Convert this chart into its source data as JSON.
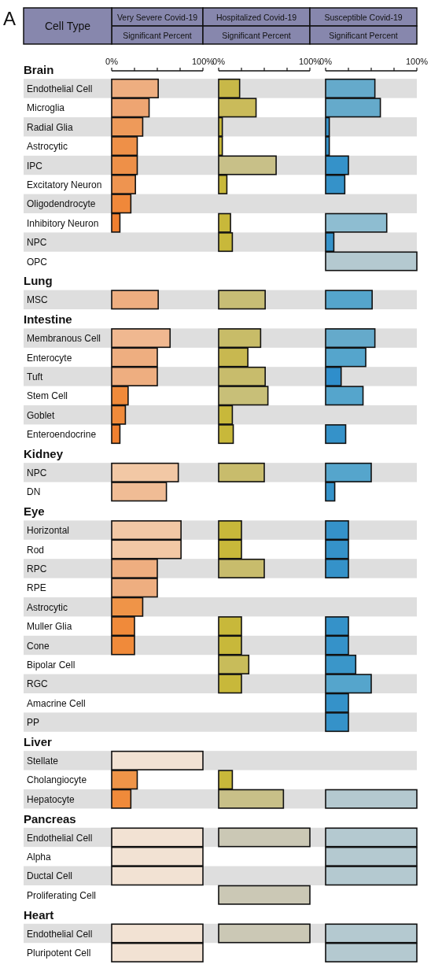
{
  "chart_data": [
    {
      "type": "bar",
      "orientation": "horizontal",
      "title": "Very Severe Covid-19",
      "subtitle": "Significant Percent",
      "ylabel": "Cell Type",
      "annotations": [
        "A"
      ],
      "categories": [
        "Brain",
        "Endothelial Cell",
        "Microglia",
        "Radial Glia",
        "Astrocytic",
        "IPC",
        "Excitatory Neuron",
        "Oligodendrocyte",
        "Inhibitory Neuron",
        "NPC",
        "OPC",
        "Lung",
        "MSC",
        "Intestine",
        "Membranous Cell",
        "Enterocyte",
        "Tuft",
        "Stem Cell",
        "Goblet",
        "Enteroendocrine",
        "Kidney",
        "NPC",
        "DN",
        "Eye",
        "Horizontal",
        "Rod",
        "RPC",
        "RPE",
        "Astrocytic",
        "Muller Glia",
        "Cone",
        "Bipolar Cell",
        "RGC",
        "Amacrine Cell",
        "PP",
        "Liver",
        "Stellate",
        "Cholangiocyte",
        "Hepatocyte",
        "Pancreas",
        "Endothelial Cell",
        "Alpha",
        "Ductal Cell",
        "Proliferating Cell",
        "Heart",
        "Endothelial Cell",
        "Pluripotent Cell"
      ],
      "values": [
        null,
        51,
        41,
        34,
        28,
        28,
        26,
        21,
        9,
        null,
        null,
        null,
        51,
        null,
        64,
        50,
        50,
        18,
        15,
        9,
        null,
        73,
        60,
        null,
        76,
        76,
        50,
        50,
        34,
        25,
        25,
        null,
        null,
        null,
        null,
        null,
        100,
        28,
        21,
        null,
        100,
        100,
        100,
        null,
        null,
        100,
        100
      ],
      "colors": [
        null,
        "#eeae80",
        "#eea572",
        "#ee9a5a",
        "#ee9048",
        "#ee9048",
        "#ee9450",
        "#f0883a",
        "#ef7f30",
        null,
        null,
        null,
        "#eeae80",
        null,
        "#f0b890",
        "#eeae80",
        "#eeae80",
        "#f08a3a",
        "#f08a3a",
        "#f08030",
        null,
        "#f2c8a5",
        "#f0bc95",
        null,
        "#f2c8a5",
        "#f2c8a5",
        "#eeae80",
        "#eeae80",
        "#ef9448",
        "#f08a3a",
        "#f08a3a",
        null,
        null,
        null,
        null,
        null,
        "#f2e2d3",
        "#ef9448",
        "#f08a3a",
        null,
        "#f2e2d3",
        "#f2e2d3",
        "#f2e2d3",
        null,
        null,
        "#f2e2d3",
        "#f2e2d3"
      ],
      "xlim": [
        0,
        100
      ],
      "xticks": [
        {
          "value": 0,
          "label": "0%"
        },
        {
          "value": 25,
          "label": null
        },
        {
          "value": 50,
          "label": null
        },
        {
          "value": 75,
          "label": null
        },
        {
          "value": 100,
          "label": "100%"
        }
      ]
    },
    {
      "type": "bar",
      "orientation": "horizontal",
      "title": "Hospitalized Covid-19",
      "subtitle": "Significant Percent",
      "tick_labels": "x",
      "values": [
        null,
        23,
        41,
        4,
        4,
        63,
        9,
        null,
        13,
        15,
        null,
        null,
        51,
        null,
        46,
        32,
        51,
        54,
        15,
        16,
        null,
        50,
        null,
        null,
        25,
        25,
        50,
        null,
        null,
        25,
        25,
        33,
        25,
        null,
        null,
        null,
        null,
        15,
        71,
        null,
        100,
        null,
        null,
        100,
        null,
        100,
        null
      ],
      "colors": [
        null,
        "#c8b848",
        "#cabb5a",
        "#c8b83a",
        "#c8b83a",
        "#c8c088",
        "#c8b83a",
        null,
        "#c8b83a",
        "#c8b83a",
        null,
        null,
        "#c7bd75",
        null,
        "#c8bc68",
        "#c8b850",
        "#c8bc6c",
        "#c8bf78",
        "#c8b83a",
        "#c8b83a",
        null,
        "#c8bc6c",
        null,
        null,
        "#c8b83a",
        "#c8b83a",
        "#c8bc6c",
        null,
        null,
        "#c8b83a",
        "#c8b83a",
        "#c8bc5a",
        "#c8b83a",
        null,
        null,
        null,
        null,
        "#c8b83a",
        "#c8c088",
        null,
        "#cbc8b5",
        null,
        null,
        "#cbc8b5",
        null,
        "#cbc8b5",
        null
      ],
      "xlim": [
        0,
        100
      ],
      "xticks": [
        {
          "value": 0,
          "label": "0%"
        },
        {
          "value": 25,
          "label": null
        },
        {
          "value": 50,
          "label": null
        },
        {
          "value": 75,
          "label": null
        },
        {
          "value": 100,
          "label": "100%"
        }
      ]
    },
    {
      "type": "bar",
      "orientation": "horizontal",
      "title": "Susceptible Covid-19",
      "subtitle": "Significant Percent",
      "tick_labels": "x",
      "values": [
        null,
        54,
        60,
        4,
        4,
        25,
        21,
        null,
        67,
        9,
        100,
        null,
        51,
        null,
        54,
        44,
        17,
        41,
        null,
        22,
        null,
        50,
        10,
        null,
        25,
        25,
        25,
        null,
        null,
        25,
        25,
        33,
        50,
        25,
        25,
        null,
        null,
        null,
        100,
        null,
        100,
        100,
        100,
        null,
        null,
        100,
        100
      ],
      "colors": [
        null,
        "#65aacb",
        "#65aacb",
        "#3592c9",
        "#3592c9",
        "#3592c9",
        "#3592c9",
        null,
        "#8ebdd1",
        "#3592c9",
        "#b4c9d0",
        null,
        "#55a5cc",
        null,
        "#65aacb",
        "#55a5cc",
        "#2f8ecb",
        "#55a5cc",
        null,
        "#3592c9",
        null,
        "#55a5cc",
        "#3592c9",
        null,
        "#3592c9",
        "#3592c9",
        "#3592c9",
        null,
        null,
        "#3592c9",
        "#3592c9",
        "#3a96c9",
        "#55a5cc",
        "#3592c9",
        "#3592c9",
        null,
        null,
        null,
        "#b4c9d0",
        null,
        "#b4c9d0",
        "#b4c9d0",
        "#b4c9d0",
        null,
        null,
        "#b4c9d0",
        "#b4c9d0"
      ],
      "xlim": [
        0,
        100
      ],
      "xticks": [
        {
          "value": 0,
          "label": "0%"
        },
        {
          "value": 25,
          "label": null
        },
        {
          "value": 50,
          "label": null
        },
        {
          "value": 75,
          "label": null
        },
        {
          "value": 100,
          "label": "100%"
        }
      ]
    }
  ]
}
